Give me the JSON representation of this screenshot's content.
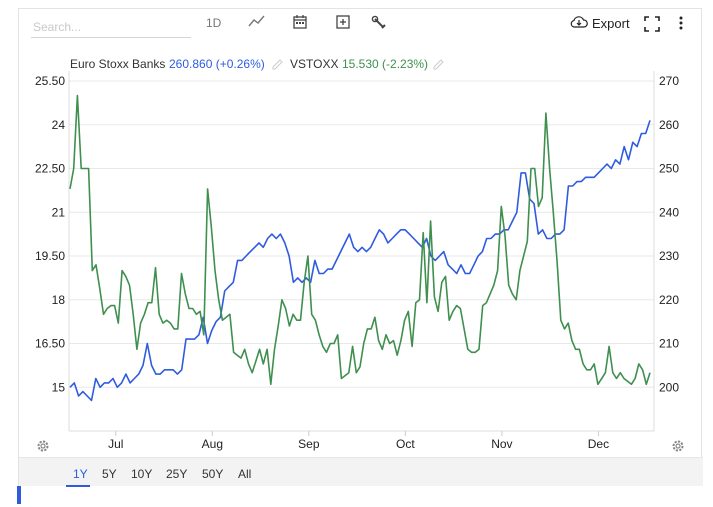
{
  "toolbar": {
    "search_placeholder": "Search...",
    "period_label": "1D",
    "export_label": "Export",
    "icons": [
      "line-chart-icon",
      "calendar-icon",
      "add-box-icon",
      "wrench-icon",
      "download-icon",
      "fullscreen-icon",
      "more-vert-icon"
    ]
  },
  "legend": {
    "s1_name": "Euro Stoxx Banks",
    "s1_value": "260.860 (+0.26%)",
    "s2_name": "VSTOXX",
    "s2_value": "15.530 (-2.23%)"
  },
  "range_buttons": [
    "1Y",
    "5Y",
    "10Y",
    "25Y",
    "50Y",
    "All"
  ],
  "range_active": "1Y",
  "colors": {
    "blue": "#2f5be0",
    "green": "#3f8f4f",
    "grid": "#e8e8e8",
    "accent": "#2f5be0"
  },
  "chart_data": {
    "type": "line",
    "x_tick_labels": [
      "Jul",
      "Aug",
      "Sep",
      "Oct",
      "Nov",
      "Dec"
    ],
    "left_axis": {
      "ticks": [
        "25.50",
        "24",
        "22.50",
        "21",
        "19.50",
        "18",
        "16.50",
        "15"
      ],
      "range": [
        13.5,
        25.5
      ]
    },
    "right_axis": {
      "ticks": [
        "270",
        "260",
        "250",
        "240",
        "230",
        "220",
        "210",
        "200"
      ],
      "range": [
        190,
        270
      ]
    },
    "grid": true,
    "series": [
      {
        "name": "Euro Stoxx Banks",
        "axis": "right",
        "color": "#2f5be0",
        "values": [
          200,
          201,
          198,
          199,
          198,
          197,
          202,
          200,
          201,
          201,
          202,
          200,
          201,
          203,
          201,
          202,
          203,
          205,
          210,
          205,
          203,
          203,
          204,
          204,
          204,
          203,
          204,
          211,
          211,
          211,
          212,
          216,
          210,
          213,
          215,
          216,
          222,
          223,
          224,
          229,
          229,
          230,
          231,
          232,
          233,
          232,
          234,
          235,
          234,
          235,
          233,
          230,
          224,
          225,
          224,
          225,
          224,
          229,
          226,
          226,
          227,
          227,
          229,
          231,
          233,
          235,
          232,
          231,
          232,
          231,
          232,
          234,
          236,
          235,
          233,
          234,
          235,
          236,
          236,
          235,
          234,
          233,
          232,
          234,
          230,
          229,
          230,
          231,
          228,
          227,
          226,
          228,
          226,
          226,
          228,
          230,
          231,
          234,
          234,
          235,
          235,
          236,
          236,
          238,
          240,
          249,
          249,
          243,
          242,
          235,
          236,
          234,
          234,
          235,
          235,
          236,
          246,
          246,
          247,
          247,
          248,
          248,
          248,
          249,
          250,
          251,
          250,
          252,
          251,
          255,
          252,
          256,
          255,
          258,
          258,
          261
        ]
      },
      {
        "name": "VSTOXX",
        "axis": "left",
        "color": "#3f8f4f",
        "values": [
          21.8,
          22.5,
          25.0,
          22.5,
          22.5,
          22.5,
          19.0,
          19.2,
          18.4,
          17.5,
          17.7,
          17.8,
          17.8,
          17.2,
          19.0,
          18.8,
          18.5,
          17.5,
          16.3,
          17.2,
          17.5,
          17.9,
          17.9,
          19.1,
          17.5,
          17.2,
          17.3,
          17.2,
          17.0,
          17.0,
          18.9,
          18.2,
          17.7,
          17.7,
          17.5,
          17.6,
          16.8,
          21.8,
          20.5,
          19.0,
          18.0,
          17.3,
          17.4,
          17.5,
          16.2,
          16.1,
          16.0,
          16.3,
          15.8,
          15.5,
          15.9,
          16.3,
          15.8,
          16.3,
          15.1,
          16.3,
          17.1,
          18.0,
          17.7,
          17.1,
          17.5,
          17.3,
          17.3,
          18.6,
          19.5,
          17.5,
          17.3,
          16.8,
          16.4,
          16.2,
          16.5,
          16.5,
          16.8,
          15.3,
          15.4,
          15.5,
          16.4,
          15.5,
          15.7,
          16.5,
          17.0,
          17.0,
          17.4,
          16.6,
          16.3,
          16.8,
          16.5,
          16.6,
          16.1,
          16.6,
          17.3,
          17.6,
          16.4,
          17.9,
          18.0,
          20.3,
          17.9,
          20.7,
          18.1,
          17.6,
          18.6,
          18.8,
          17.3,
          17.6,
          17.8,
          17.7,
          17.0,
          16.3,
          16.2,
          16.2,
          16.3,
          17.8,
          17.9,
          18.2,
          18.5,
          19.0,
          21.2,
          20.2,
          18.5,
          18.2,
          18.0,
          19.0,
          19.5,
          20.0,
          22.5,
          22.5,
          21.2,
          21.5,
          24.4,
          22.5,
          21.0,
          19.3,
          17.3,
          17.0,
          17.2,
          16.6,
          16.3,
          16.3,
          15.8,
          15.6,
          15.6,
          15.8,
          15.1,
          15.3,
          15.5,
          16.4,
          15.5,
          15.3,
          15.5,
          15.3,
          15.2,
          15.1,
          15.3,
          15.8,
          15.6,
          15.1,
          15.5
        ]
      }
    ]
  }
}
